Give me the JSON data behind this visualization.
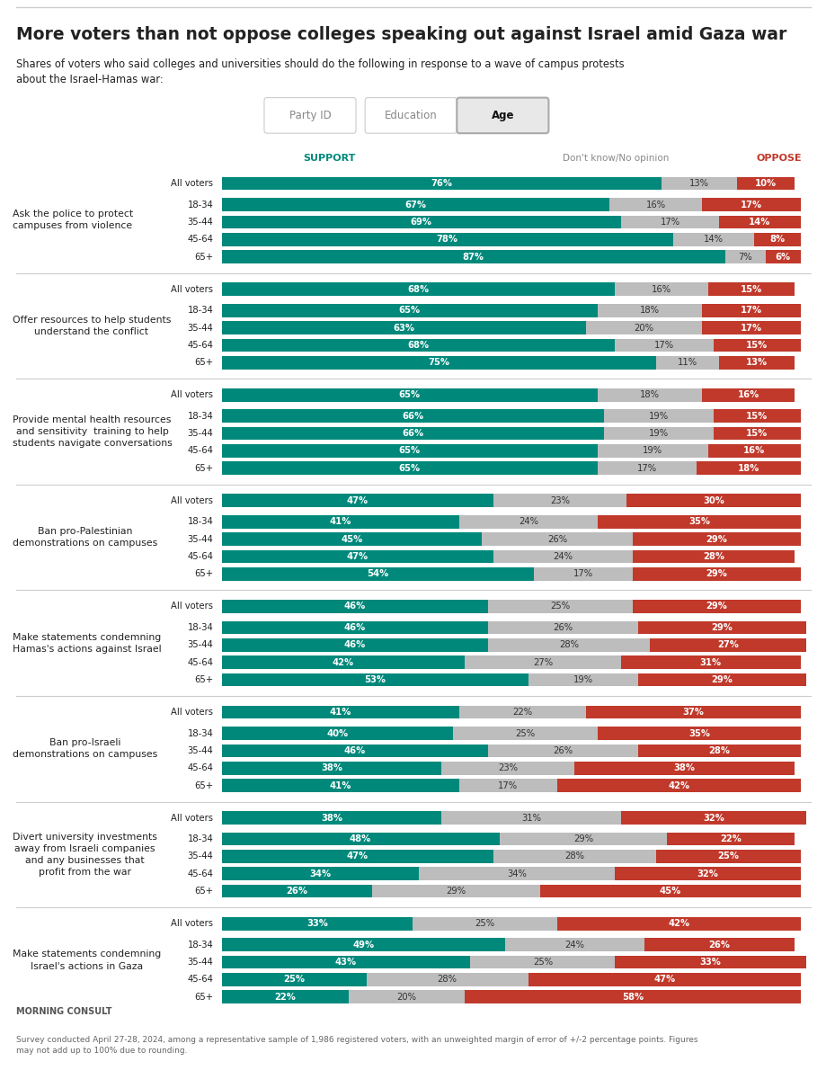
{
  "title": "More voters than not oppose colleges speaking out against Israel amid Gaza war",
  "subtitle": "Shares of voters who said colleges and universities should do the following in response to a wave of campus protests\nabout the Israel-Hamas war:",
  "tab_labels": [
    "Party ID",
    "Education",
    "Age"
  ],
  "active_tab": "Age",
  "support_color": "#00897B",
  "oppose_color": "#C0392B",
  "dk_color": "#BDBDBD",
  "support_label": "SUPPORT",
  "oppose_label": "OPPOSE",
  "dk_label": "Don't know/No opinion",
  "row_labels": [
    "All voters",
    "18-34",
    "35-44",
    "45-64",
    "65+"
  ],
  "questions": [
    {
      "label": "Ask the police to protect\ncampuses from violence",
      "rows": [
        {
          "support": 76,
          "dk": 13,
          "oppose": 10
        },
        {
          "support": 67,
          "dk": 16,
          "oppose": 17
        },
        {
          "support": 69,
          "dk": 17,
          "oppose": 14
        },
        {
          "support": 78,
          "dk": 14,
          "oppose": 8
        },
        {
          "support": 87,
          "dk": 7,
          "oppose": 6
        }
      ]
    },
    {
      "label": "Offer resources to help students\nunderstand the conflict",
      "rows": [
        {
          "support": 68,
          "dk": 16,
          "oppose": 15
        },
        {
          "support": 65,
          "dk": 18,
          "oppose": 17
        },
        {
          "support": 63,
          "dk": 20,
          "oppose": 17
        },
        {
          "support": 68,
          "dk": 17,
          "oppose": 15
        },
        {
          "support": 75,
          "dk": 11,
          "oppose": 13
        }
      ]
    },
    {
      "label": "Provide mental health resources\nand sensitivity  training to help\nstudents navigate conversations",
      "rows": [
        {
          "support": 65,
          "dk": 18,
          "oppose": 16
        },
        {
          "support": 66,
          "dk": 19,
          "oppose": 15
        },
        {
          "support": 66,
          "dk": 19,
          "oppose": 15
        },
        {
          "support": 65,
          "dk": 19,
          "oppose": 16
        },
        {
          "support": 65,
          "dk": 17,
          "oppose": 18
        }
      ]
    },
    {
      "label": "Ban pro-Palestinian\ndemonstrations on campuses",
      "rows": [
        {
          "support": 47,
          "dk": 23,
          "oppose": 30
        },
        {
          "support": 41,
          "dk": 24,
          "oppose": 35
        },
        {
          "support": 45,
          "dk": 26,
          "oppose": 29
        },
        {
          "support": 47,
          "dk": 24,
          "oppose": 28
        },
        {
          "support": 54,
          "dk": 17,
          "oppose": 29
        }
      ]
    },
    {
      "label": "Make statements condemning\nHamas's actions against Israel",
      "rows": [
        {
          "support": 46,
          "dk": 25,
          "oppose": 29
        },
        {
          "support": 46,
          "dk": 26,
          "oppose": 29
        },
        {
          "support": 46,
          "dk": 28,
          "oppose": 27
        },
        {
          "support": 42,
          "dk": 27,
          "oppose": 31
        },
        {
          "support": 53,
          "dk": 19,
          "oppose": 29
        }
      ]
    },
    {
      "label": "Ban pro-Israeli\ndemonstrations on campuses",
      "rows": [
        {
          "support": 41,
          "dk": 22,
          "oppose": 37
        },
        {
          "support": 40,
          "dk": 25,
          "oppose": 35
        },
        {
          "support": 46,
          "dk": 26,
          "oppose": 28
        },
        {
          "support": 38,
          "dk": 23,
          "oppose": 38
        },
        {
          "support": 41,
          "dk": 17,
          "oppose": 42
        }
      ]
    },
    {
      "label": "Divert university investments\naway from Israeli companies\nand any businesses that\nprofit from the war",
      "rows": [
        {
          "support": 38,
          "dk": 31,
          "oppose": 32
        },
        {
          "support": 48,
          "dk": 29,
          "oppose": 22
        },
        {
          "support": 47,
          "dk": 28,
          "oppose": 25
        },
        {
          "support": 34,
          "dk": 34,
          "oppose": 32
        },
        {
          "support": 26,
          "dk": 29,
          "oppose": 45
        }
      ]
    },
    {
      "label": "Make statements condemning\nIsrael's actions in Gaza",
      "rows": [
        {
          "support": 33,
          "dk": 25,
          "oppose": 42
        },
        {
          "support": 49,
          "dk": 24,
          "oppose": 26
        },
        {
          "support": 43,
          "dk": 25,
          "oppose": 33
        },
        {
          "support": 25,
          "dk": 28,
          "oppose": 47
        },
        {
          "support": 22,
          "dk": 20,
          "oppose": 58
        }
      ]
    }
  ],
  "footer": "Survey conducted April 27-28, 2024, among a representative sample of 1,986 registered voters, with an unweighted margin of error of +/-2 percentage points. Figures\nmay not add up to 100% due to rounding.",
  "bg_color": "#FFFFFF",
  "text_color": "#222222",
  "separator_color": "#CCCCCC"
}
